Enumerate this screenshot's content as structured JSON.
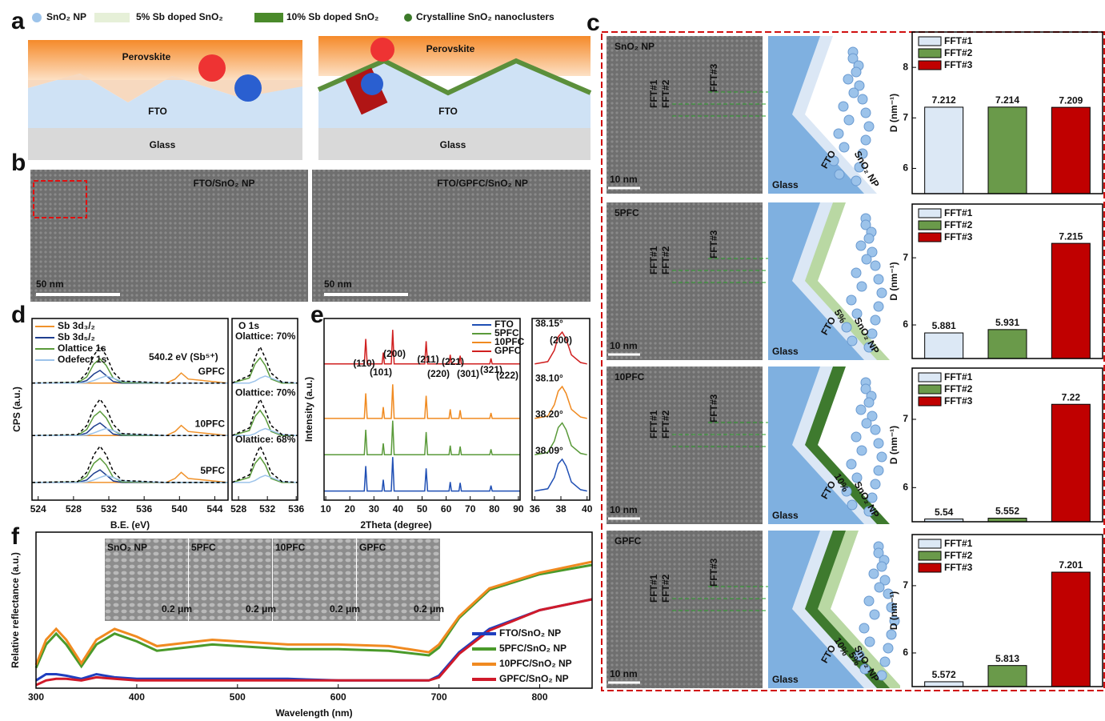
{
  "panel_labels": [
    "a",
    "b",
    "c",
    "d",
    "e",
    "f"
  ],
  "panel_a": {
    "legend": [
      "SnO₂ NP",
      "5% Sb doped SnO₂",
      "10% Sb doped SnO₂",
      "Crystalline SnO₂ nanoclusters"
    ],
    "left": [
      "Perovskite",
      "FTO",
      "Glass"
    ],
    "right": [
      "Perovskite",
      "FTO",
      "Glass"
    ]
  },
  "panel_b": {
    "titles": [
      "FTO/SnO₂ NP",
      "FTO/GPFC/SnO₂ NP"
    ],
    "scales": [
      "50 nm",
      "50 nm"
    ]
  },
  "panel_c": {
    "rows": [
      {
        "label": "SnO₂ NP",
        "scale": "10 nm",
        "fft": [
          "FFT#1",
          "FFT#2",
          "FFT#3"
        ],
        "glass": "Glass",
        "fto": "FTO",
        "np": "SnO₂ NP",
        "doping": []
      },
      {
        "label": "5PFC",
        "scale": "10 nm",
        "fft": [
          "FFT#1",
          "FFT#2",
          "FFT#3"
        ],
        "glass": "Glass",
        "fto": "FTO",
        "np": "SnO₂ NP",
        "doping": [
          "5%"
        ]
      },
      {
        "label": "10PFC",
        "scale": "10 nm",
        "fft": [
          "FFT#1",
          "FFT#2",
          "FFT#3"
        ],
        "glass": "Glass",
        "fto": "FTO",
        "np": "SnO₂ NP",
        "doping": [
          "10%"
        ]
      },
      {
        "label": "GPFC",
        "scale": "10 nm",
        "fft": [
          "FFT#1",
          "FFT#2",
          "FFT#3"
        ],
        "glass": "Glass",
        "fto": "FTO",
        "np": "SnO₂ NP",
        "doping": [
          "10%",
          "5%"
        ]
      }
    ]
  },
  "panel_f_insets": {
    "labels": [
      "SnO₂ NP",
      "5PFC",
      "10PFC",
      "GPFC"
    ],
    "scales": [
      "0.2 μm",
      "0.2 μm",
      "0.2 μm",
      "0.2 μm"
    ]
  },
  "chart_data": [
    {
      "type": "bar",
      "ylabel": "D (nm⁻¹)",
      "categories": [
        "FFT#1",
        "FFT#2",
        "FFT#3"
      ],
      "values": [
        7.212,
        7.214,
        7.209
      ],
      "colors": [
        "#dce8f5",
        "#6a9a4a",
        "#c00000"
      ],
      "ylim": [
        5.5,
        8.7
      ],
      "yticks": [
        6,
        7,
        8
      ]
    },
    {
      "type": "bar",
      "ylabel": "D (nm⁻¹)",
      "categories": [
        "FFT#1",
        "FFT#2",
        "FFT#3"
      ],
      "values": [
        5.881,
        5.931,
        7.215
      ],
      "colors": [
        "#dce8f5",
        "#6a9a4a",
        "#c00000"
      ],
      "ylim": [
        5.5,
        7.8
      ],
      "yticks": [
        6,
        7
      ]
    },
    {
      "type": "bar",
      "ylabel": "D (nm⁻¹)",
      "categories": [
        "FFT#1",
        "FFT#2",
        "FFT#3"
      ],
      "values": [
        5.54,
        5.552,
        7.22
      ],
      "colors": [
        "#dce8f5",
        "#6a9a4a",
        "#c00000"
      ],
      "ylim": [
        5.5,
        7.75
      ],
      "yticks": [
        6,
        7
      ]
    },
    {
      "type": "bar",
      "ylabel": "D (nm⁻¹)",
      "categories": [
        "FFT#1",
        "FFT#2",
        "FFT#3"
      ],
      "values": [
        5.572,
        5.813,
        7.201
      ],
      "colors": [
        "#dce8f5",
        "#6a9a4a",
        "#c00000"
      ],
      "ylim": [
        5.5,
        7.76
      ],
      "yticks": [
        6,
        7
      ]
    },
    {
      "type": "line",
      "xlabel": "B.E. (eV)",
      "ylabel": "CPS (a.u.)",
      "annotation": "540.2 eV (Sb⁵⁺)",
      "trace_labels": [
        "GPFC",
        "10PFC",
        "5PFC"
      ],
      "x": [
        523.3,
        528.5,
        529.5,
        530.3,
        531,
        531.7,
        532.5,
        533.5,
        538.5,
        539.5,
        540.2,
        541,
        545.5
      ],
      "xlim": [
        523.3,
        545.5
      ],
      "xticks": [
        524,
        528,
        532,
        536,
        540,
        544
      ],
      "ylim": [
        0,
        3.6
      ],
      "series": [
        {
          "name": "Sb 3d₃/₂",
          "color": "#f0922b",
          "traces": [
            [
              2.32,
              2.32,
              2.32,
              2.32,
              2.32,
              2.32,
              2.32,
              2.32,
              2.32,
              2.4,
              2.52,
              2.4,
              2.32
            ],
            [
              1.28,
              1.28,
              1.28,
              1.28,
              1.28,
              1.28,
              1.28,
              1.28,
              1.28,
              1.36,
              1.48,
              1.36,
              1.28
            ],
            [
              0.35,
              0.35,
              0.35,
              0.35,
              0.35,
              0.35,
              0.35,
              0.35,
              0.35,
              0.43,
              0.55,
              0.43,
              0.35
            ]
          ]
        },
        {
          "name": "Sb 3d₅/₂",
          "color": "#1f3f8f",
          "traces": [
            [
              2.32,
              2.32,
              2.37,
              2.5,
              2.57,
              2.47,
              2.35,
              2.32,
              2.32,
              2.32,
              2.32,
              2.32,
              2.32
            ],
            [
              1.28,
              1.28,
              1.33,
              1.46,
              1.53,
              1.43,
              1.31,
              1.28,
              1.28,
              1.28,
              1.28,
              1.28,
              1.28
            ],
            [
              0.35,
              0.35,
              0.4,
              0.53,
              0.6,
              0.5,
              0.38,
              0.35,
              0.35,
              0.35,
              0.35,
              0.35,
              0.35
            ]
          ]
        },
        {
          "name": "Olattice 1s",
          "color": "#5b9b3b",
          "traces": [
            [
              2.32,
              2.33,
              2.44,
              2.7,
              2.8,
              2.67,
              2.42,
              2.33,
              2.32,
              2.32,
              2.32,
              2.32,
              2.32
            ],
            [
              1.28,
              1.29,
              1.4,
              1.66,
              1.76,
              1.63,
              1.38,
              1.29,
              1.28,
              1.28,
              1.28,
              1.28,
              1.28
            ],
            [
              0.35,
              0.36,
              0.47,
              0.73,
              0.83,
              0.7,
              0.45,
              0.36,
              0.35,
              0.35,
              0.35,
              0.35,
              0.35
            ]
          ]
        },
        {
          "name": "Odefect 1s",
          "color": "#9cc3ea",
          "traces": [
            [
              2.32,
              2.32,
              2.33,
              2.37,
              2.42,
              2.46,
              2.42,
              2.35,
              2.32,
              2.32,
              2.32,
              2.32,
              2.32
            ],
            [
              1.28,
              1.28,
              1.29,
              1.33,
              1.38,
              1.42,
              1.38,
              1.31,
              1.28,
              1.28,
              1.28,
              1.28,
              1.28
            ],
            [
              0.35,
              0.35,
              0.36,
              0.4,
              0.45,
              0.49,
              0.45,
              0.38,
              0.35,
              0.35,
              0.35,
              0.35,
              0.35
            ]
          ]
        },
        {
          "color": "#000000",
          "dashed": true,
          "traces": [
            [
              2.32,
              2.34,
              2.52,
              2.87,
              3.04,
              2.87,
              2.54,
              2.36,
              2.32,
              2.32,
              2.32,
              2.32,
              2.32
            ],
            [
              1.28,
              1.3,
              1.48,
              1.83,
              2.0,
              1.83,
              1.5,
              1.32,
              1.28,
              1.28,
              1.28,
              1.28,
              1.28
            ],
            [
              0.35,
              0.37,
              0.55,
              0.9,
              1.07,
              0.9,
              0.57,
              0.39,
              0.35,
              0.35,
              0.35,
              0.35,
              0.35
            ]
          ]
        }
      ]
    },
    {
      "type": "line",
      "title": "O 1s",
      "annotations": [
        "Olattice: 70%",
        "Olattice: 70%",
        "Olattice: 68%"
      ],
      "x": [
        527.1,
        529.5,
        530.3,
        531,
        531.7,
        532.5,
        534,
        536.2
      ],
      "xlim": [
        527.1,
        536.2
      ],
      "xticks": [
        528,
        532,
        536
      ],
      "ylim": [
        0,
        3.6
      ],
      "series": [
        {
          "color": "#5b9b3b",
          "traces": [
            [
              2.32,
              2.42,
              2.7,
              2.82,
              2.67,
              2.4,
              2.32,
              2.32
            ],
            [
              1.28,
              1.38,
              1.66,
              1.78,
              1.63,
              1.36,
              1.28,
              1.28
            ],
            [
              0.35,
              0.45,
              0.73,
              0.85,
              0.7,
              0.43,
              0.35,
              0.35
            ]
          ]
        },
        {
          "color": "#9cc3ea",
          "traces": [
            [
              2.32,
              2.32,
              2.36,
              2.42,
              2.46,
              2.42,
              2.34,
              2.32
            ],
            [
              1.28,
              1.28,
              1.32,
              1.38,
              1.42,
              1.38,
              1.3,
              1.28
            ],
            [
              0.35,
              0.35,
              0.39,
              0.45,
              0.49,
              0.45,
              0.37,
              0.35
            ]
          ]
        },
        {
          "color": "#000000",
          "dashed": true,
          "traces": [
            [
              2.32,
              2.47,
              2.82,
              3.04,
              2.82,
              2.52,
              2.34,
              2.32
            ],
            [
              1.28,
              1.43,
              1.78,
              2.0,
              1.78,
              1.48,
              1.3,
              1.28
            ],
            [
              0.35,
              0.5,
              0.85,
              1.07,
              0.85,
              0.55,
              0.37,
              0.35
            ]
          ]
        }
      ]
    },
    {
      "type": "line",
      "xlabel": "2Theta (degree)",
      "ylabel": "Intensity (a.u.)",
      "peak_labels": [
        "(110)",
        "(101)",
        "(200)",
        "(211)",
        "(220)",
        "(221)",
        "(301)",
        "(321)",
        "(222)"
      ],
      "x": [
        9.3,
        26,
        26.6,
        27.2,
        33.4,
        33.9,
        34.4,
        37.2,
        37.8,
        38.4,
        51.1,
        51.7,
        52.3,
        61.2,
        61.7,
        62.2,
        65.3,
        65.8,
        66.3,
        78.1,
        78.6,
        79.1,
        90.7
      ],
      "xlim": [
        9.3,
        90.7
      ],
      "xticks": [
        10,
        20,
        30,
        40,
        50,
        60,
        70,
        80,
        90
      ],
      "ylim": [
        0,
        4
      ],
      "series": [
        {
          "name": "FTO",
          "color": "#1f4fb4",
          "values": [
            0.2,
            0.2,
            0.75,
            0.2,
            0.2,
            0.45,
            0.2,
            0.2,
            0.95,
            0.2,
            0.2,
            0.7,
            0.2,
            0.2,
            0.4,
            0.2,
            0.2,
            0.38,
            0.2,
            0.2,
            0.32,
            0.2,
            0.2
          ]
        },
        {
          "name": "5PFC",
          "color": "#5a9a3a",
          "values": [
            1,
            1,
            1.55,
            1,
            1,
            1.25,
            1,
            1,
            1.75,
            1,
            1,
            1.5,
            1,
            1,
            1.2,
            1,
            1,
            1.18,
            1,
            1,
            1.12,
            1,
            1
          ]
        },
        {
          "name": "10PFC",
          "color": "#f08a20",
          "values": [
            1.8,
            1.8,
            2.35,
            1.8,
            1.8,
            2.05,
            1.8,
            1.8,
            2.55,
            1.8,
            1.8,
            2.3,
            1.8,
            1.8,
            2.0,
            1.8,
            1.8,
            1.98,
            1.8,
            1.8,
            1.92,
            1.8,
            1.8
          ]
        },
        {
          "name": "GPFC",
          "color": "#d02020",
          "values": [
            3,
            3,
            3.55,
            3,
            3,
            3.25,
            3,
            3,
            3.75,
            3,
            3,
            3.5,
            3,
            3,
            3.2,
            3,
            3,
            3.18,
            3,
            3,
            3.12,
            3,
            3
          ]
        }
      ]
    },
    {
      "type": "line",
      "title": "(200)",
      "x": [
        36,
        37,
        37.5,
        37.8,
        38.1,
        38.4,
        38.8,
        39.5,
        40
      ],
      "xlim": [
        35.8,
        40.2
      ],
      "xticks": [
        36,
        38,
        40
      ],
      "ylim": [
        0,
        4
      ],
      "series": [
        {
          "label": "38.15°",
          "color": "#d02020",
          "values": [
            3,
            3.05,
            3.3,
            3.6,
            3.7,
            3.55,
            3.2,
            3.03,
            3
          ]
        },
        {
          "label": "38.10°",
          "color": "#f08a20",
          "values": [
            1.8,
            1.85,
            2.1,
            2.4,
            2.5,
            2.35,
            2.0,
            1.83,
            1.8
          ]
        },
        {
          "label": "38.20°",
          "color": "#5a9a3a",
          "values": [
            1,
            1.05,
            1.3,
            1.6,
            1.7,
            1.55,
            1.2,
            1.03,
            1
          ]
        },
        {
          "label": "38.09°",
          "color": "#1f4fb4",
          "values": [
            0.2,
            0.25,
            0.5,
            0.8,
            0.9,
            0.75,
            0.4,
            0.23,
            0.2
          ]
        }
      ]
    },
    {
      "type": "line",
      "xlabel": "Wavelength (nm)",
      "ylabel": "Relative reflectance (a.u.)",
      "x": [
        300,
        310,
        320,
        330,
        345,
        360,
        378,
        400,
        420,
        475,
        550,
        600,
        650,
        690,
        700,
        720,
        750,
        800,
        852
      ],
      "xlim": [
        300,
        852
      ],
      "xticks": [
        300,
        400,
        500,
        600,
        700,
        800
      ],
      "ylim": [
        0,
        1
      ],
      "series": [
        {
          "name": "FTO/SnO₂ NP",
          "color": "#1f3fbf",
          "values": [
            0.05,
            0.09,
            0.09,
            0.08,
            0.06,
            0.09,
            0.07,
            0.06,
            0.06,
            0.06,
            0.06,
            0.05,
            0.05,
            0.05,
            0.08,
            0.23,
            0.38,
            0.5,
            0.57
          ]
        },
        {
          "name": "5PFC/SnO₂ NP",
          "color": "#4a9a2a",
          "values": [
            0.13,
            0.28,
            0.35,
            0.28,
            0.14,
            0.28,
            0.35,
            0.3,
            0.24,
            0.28,
            0.25,
            0.25,
            0.24,
            0.21,
            0.26,
            0.45,
            0.63,
            0.73,
            0.79
          ]
        },
        {
          "name": "10PFC/SnO₂ NP",
          "color": "#f08a20",
          "values": [
            0.15,
            0.31,
            0.38,
            0.31,
            0.16,
            0.31,
            0.38,
            0.33,
            0.27,
            0.31,
            0.28,
            0.28,
            0.27,
            0.23,
            0.28,
            0.46,
            0.64,
            0.74,
            0.81
          ]
        },
        {
          "name": "GPFC/SnO₂ NP",
          "color": "#d01a2a",
          "values": [
            0.02,
            0.05,
            0.06,
            0.06,
            0.05,
            0.07,
            0.06,
            0.05,
            0.05,
            0.05,
            0.05,
            0.05,
            0.05,
            0.05,
            0.07,
            0.22,
            0.37,
            0.5,
            0.57
          ]
        }
      ]
    }
  ]
}
